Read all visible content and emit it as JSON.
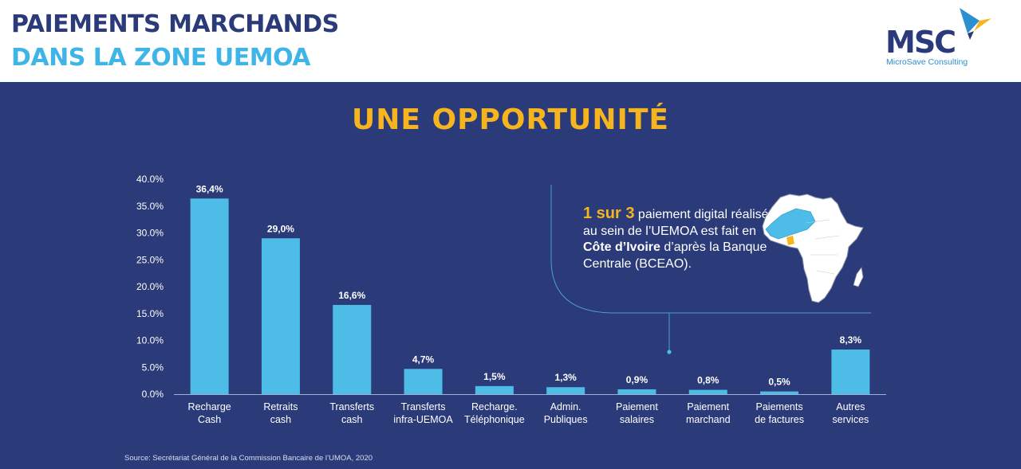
{
  "header": {
    "title_line1": "PAIEMENTS MARCHANDS",
    "title_line2": "DANS LA ZONE UEMOA",
    "logo_text": "MSC",
    "logo_subtitle": "MicroSave Consulting"
  },
  "colors": {
    "navy": "#2b3a78",
    "light_blue": "#3fb4e6",
    "yellow": "#f6b51e",
    "bar": "#4dbde8",
    "white": "#ffffff"
  },
  "headline": "UNE OPPORTUNITÉ",
  "callout": {
    "highlight": "1 sur 3",
    "text_1": " paiement digital réalisé au sein de l’UEMOA est fait en ",
    "bold": "Côte d’Ivoire",
    "text_2": " d’après la Banque Centrale (BCEAO).",
    "map_icon": "africa-map-icon"
  },
  "source": "Source: Secrétariat Général de la Commission Bancaire de l’UMOA, 2020",
  "chart_data": {
    "type": "bar",
    "categories": [
      [
        "Recharge",
        "Cash"
      ],
      [
        "Retraits",
        "cash"
      ],
      [
        "Transferts",
        "cash"
      ],
      [
        "Transferts",
        "infra-UEMOA"
      ],
      [
        "Recharge.",
        "Téléphonique"
      ],
      [
        "Admin.",
        "Publiques"
      ],
      [
        "Paiement",
        "salaires"
      ],
      [
        "Paiement",
        "marchand"
      ],
      [
        "Paiements",
        "de factures"
      ],
      [
        "Autres",
        "services"
      ]
    ],
    "values": [
      36.4,
      29.0,
      16.6,
      4.7,
      1.5,
      1.3,
      0.9,
      0.8,
      0.5,
      8.3
    ],
    "value_labels": [
      "36,4%",
      "29,0%",
      "16,6%",
      "4,7%",
      "1,5%",
      "1,3%",
      "0,9%",
      "0,8%",
      "0,5%",
      "8,3%"
    ],
    "y_ticks": [
      "0.0%",
      "5.0%",
      "10.0%",
      "15.0%",
      "20.0%",
      "25.0%",
      "30.0%",
      "35.0%",
      "40.0%"
    ],
    "ylim": [
      0,
      40
    ],
    "grid": false,
    "title": "",
    "xlabel": "",
    "ylabel": ""
  }
}
